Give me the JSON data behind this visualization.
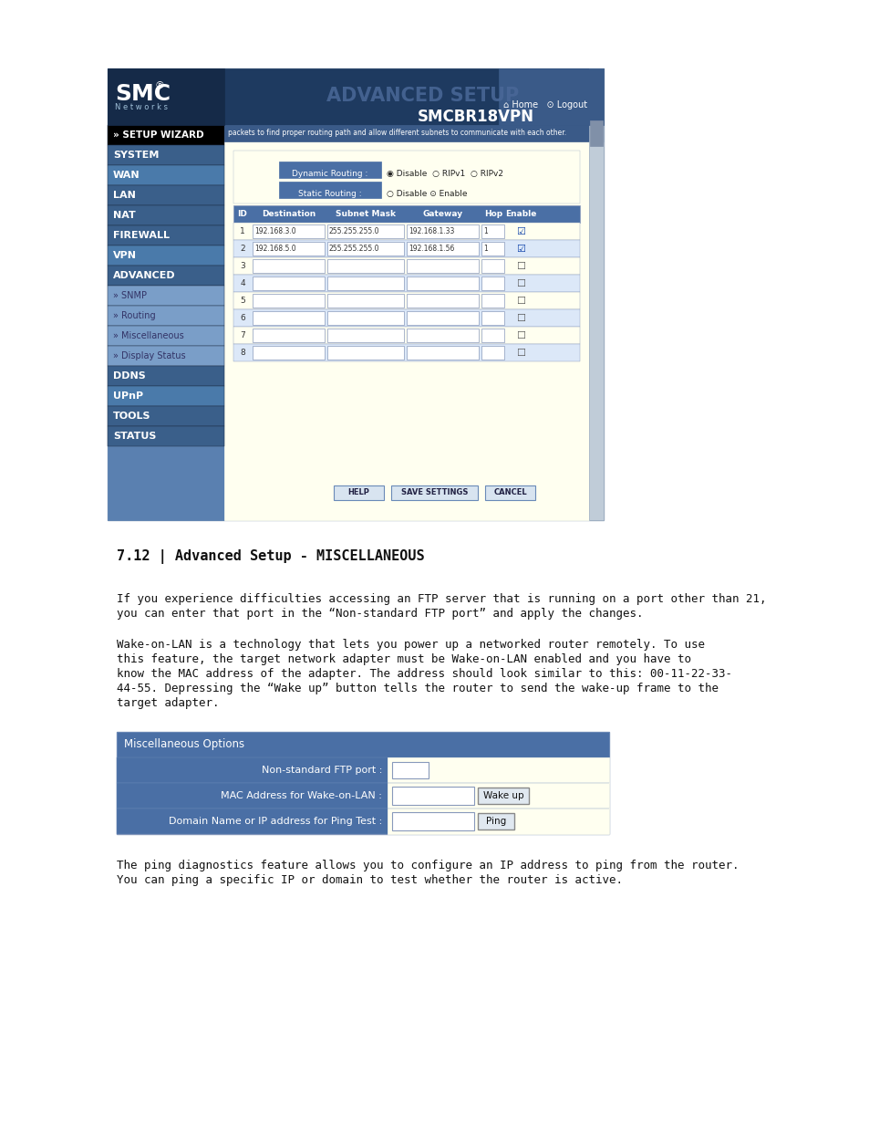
{
  "bg_color": "#ffffff",
  "section_title": "7.12 | Advanced Setup - MISCELLANEOUS",
  "para1_l1": "If you experience difficulties accessing an FTP server that is running on a port other than 21,",
  "para1_l2": "you can enter that port in the “Non-standard FTP port” and apply the changes.",
  "para2_l1": "Wake-on-LAN is a technology that lets you power up a networked router remotely. To use",
  "para2_l2": "this feature, the target network adapter must be Wake-on-LAN enabled and you have to",
  "para2_l3": "know the MAC address of the adapter. The address should look similar to this: 00-11-22-33-",
  "para2_l4": "44-55. Depressing the “Wake up” button tells the router to send the wake-up frame to the",
  "para2_l5": "target adapter.",
  "para3_l1": "The ping diagnostics feature allows you to configure an IP address to ping from the router.",
  "para3_l2": "You can ping a specific IP or domain to test whether the router is active.",
  "misc_header": "Miscellaneous Options",
  "misc_row1_label": "Non-standard FTP port :",
  "misc_row2_label": "MAC Address for Wake-on-LAN :",
  "misc_row2_btn": "Wake up",
  "misc_row3_label": "Domain Name or IP address for Ping Test :",
  "misc_row3_btn": "Ping",
  "routing_col_headers": [
    "ID",
    "Destination",
    "Subnet Mask",
    "Gateway",
    "Hop",
    "Enable"
  ],
  "routing_rows": [
    [
      "1",
      "192.168.3.0",
      "255.255.255.0",
      "192.168.1.33",
      "1",
      true
    ],
    [
      "2",
      "192.168.5.0",
      "255.255.255.0",
      "192.168.1.56",
      "1",
      true
    ],
    [
      "3",
      "",
      "",
      "",
      "",
      false
    ],
    [
      "4",
      "",
      "",
      "",
      "",
      false
    ],
    [
      "5",
      "",
      "",
      "",
      "",
      false
    ],
    [
      "6",
      "",
      "",
      "",
      "",
      false
    ],
    [
      "7",
      "",
      "",
      "",
      "",
      false
    ],
    [
      "8",
      "",
      "",
      "",
      "",
      false
    ]
  ],
  "nav_items": [
    {
      "label": "» SETUP WIZARD",
      "bg": "#000000",
      "fg": "#ffffff",
      "bold": true,
      "size": 7.5
    },
    {
      "label": "SYSTEM",
      "bg": "#3a5f8a",
      "fg": "#ffffff",
      "bold": true,
      "size": 8
    },
    {
      "label": "WAN",
      "bg": "#4a7aaa",
      "fg": "#ffffff",
      "bold": true,
      "size": 8
    },
    {
      "label": "LAN",
      "bg": "#3a5f8a",
      "fg": "#ffffff",
      "bold": true,
      "size": 8
    },
    {
      "label": "NAT",
      "bg": "#3a5f8a",
      "fg": "#ffffff",
      "bold": true,
      "size": 8
    },
    {
      "label": "FIREWALL",
      "bg": "#3a5f8a",
      "fg": "#ffffff",
      "bold": true,
      "size": 8
    },
    {
      "label": "VPN",
      "bg": "#4a7aaa",
      "fg": "#ffffff",
      "bold": true,
      "size": 8
    },
    {
      "label": "ADVANCED",
      "bg": "#3a5f8a",
      "fg": "#ffffff",
      "bold": true,
      "size": 8
    },
    {
      "label": "» SNMP",
      "bg": "#7a9ec8",
      "fg": "#333366",
      "bold": false,
      "size": 7
    },
    {
      "label": "» Routing",
      "bg": "#7a9ec8",
      "fg": "#333366",
      "bold": false,
      "size": 7
    },
    {
      "label": "» Miscellaneous",
      "bg": "#7a9ec8",
      "fg": "#333366",
      "bold": false,
      "size": 7
    },
    {
      "label": "» Display Status",
      "bg": "#7a9ec8",
      "fg": "#333366",
      "bold": false,
      "size": 7
    },
    {
      "label": "DDNS",
      "bg": "#3a5f8a",
      "fg": "#ffffff",
      "bold": true,
      "size": 8
    },
    {
      "label": "UPnP",
      "bg": "#4a7aaa",
      "fg": "#ffffff",
      "bold": true,
      "size": 8
    },
    {
      "label": "TOOLS",
      "bg": "#3a5f8a",
      "fg": "#ffffff",
      "bold": true,
      "size": 8
    },
    {
      "label": "STATUS",
      "bg": "#3a5f8a",
      "fg": "#ffffff",
      "bold": true,
      "size": 8
    }
  ],
  "sidebar_color_bottom": "#5a80b0",
  "header_dark": "#1e3a60",
  "header_mid": "#2d5080",
  "adv_setup_color": "#6080b0",
  "smcbr_color": "#ffffff",
  "content_bg": "#fffff0",
  "content_light": "#dce8f8",
  "routing_hdr_bg": "#4a6fa5",
  "routing_row_bg": "#e8f0fa",
  "table_border": "#8899bb"
}
